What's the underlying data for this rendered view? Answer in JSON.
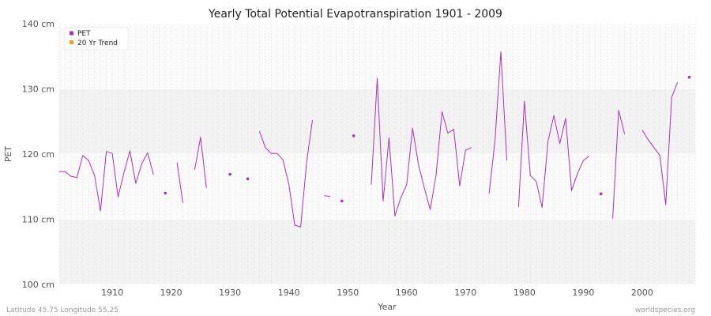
{
  "chart_data": {
    "type": "line",
    "title": "Yearly Total Potential Evapotranspiration 1901 - 2009",
    "xlabel": "Year",
    "ylabel": "PET",
    "xlim": [
      1901,
      2009
    ],
    "ylim": [
      100,
      140
    ],
    "x_ticks": [
      1910,
      1920,
      1930,
      1940,
      1950,
      1960,
      1970,
      1980,
      1990,
      2000
    ],
    "y_ticks": [
      {
        "value": 100,
        "label": "100 cm"
      },
      {
        "value": 110,
        "label": "110 cm"
      },
      {
        "value": 120,
        "label": "120 cm"
      },
      {
        "value": 130,
        "label": "130 cm"
      },
      {
        "value": 140,
        "label": "140 cm"
      }
    ],
    "grid": true,
    "legend": {
      "position": "top-left",
      "entries": [
        {
          "label": "PET",
          "color": "#aa33bb"
        },
        {
          "label": "20 Yr Trend",
          "color": "#f0a020"
        }
      ]
    },
    "series": [
      {
        "name": "PET",
        "color": "#aa33bb",
        "x": [
          1901,
          1902,
          1903,
          1904,
          1905,
          1906,
          1907,
          1908,
          1909,
          1910,
          1911,
          1912,
          1913,
          1914,
          1915,
          1916,
          1917,
          1918,
          1919,
          1920,
          1921,
          1922,
          1923,
          1924,
          1925,
          1926,
          1927,
          1928,
          1929,
          1930,
          1931,
          1932,
          1933,
          1934,
          1935,
          1936,
          1937,
          1938,
          1939,
          1940,
          1941,
          1942,
          1943,
          1944,
          1945,
          1946,
          1947,
          1948,
          1949,
          1950,
          1951,
          1952,
          1953,
          1954,
          1955,
          1956,
          1957,
          1958,
          1959,
          1960,
          1961,
          1962,
          1963,
          1964,
          1965,
          1966,
          1967,
          1968,
          1969,
          1970,
          1971,
          1972,
          1973,
          1974,
          1975,
          1976,
          1977,
          1978,
          1979,
          1980,
          1981,
          1982,
          1983,
          1984,
          1985,
          1986,
          1987,
          1988,
          1989,
          1990,
          1991,
          1992,
          1993,
          1994,
          1995,
          1996,
          1997,
          1998,
          1999,
          2000,
          2001,
          2002,
          2003,
          2004,
          2005,
          2006,
          2007,
          2008,
          2009
        ],
        "values": [
          117.3,
          117.3,
          116.6,
          116.4,
          119.8,
          119.0,
          116.7,
          111.3,
          120.4,
          120.1,
          113.4,
          117.2,
          120.5,
          115.5,
          118.5,
          120.2,
          116.8,
          null,
          114.0,
          null,
          118.7,
          112.5,
          null,
          117.6,
          122.6,
          114.8,
          null,
          null,
          null,
          116.9,
          null,
          null,
          116.2,
          null,
          123.5,
          121.0,
          120.1,
          120.1,
          119.1,
          115.3,
          109.1,
          108.8,
          118.7,
          125.2,
          null,
          113.6,
          113.5,
          null,
          112.8,
          null,
          122.8,
          null,
          null,
          115.3,
          131.6,
          112.8,
          122.5,
          110.5,
          113.3,
          115.3,
          124.0,
          118.4,
          114.8,
          111.5,
          116.8,
          126.5,
          123.2,
          123.8,
          115.1,
          120.6,
          121.0,
          null,
          null,
          113.9,
          122.1,
          135.7,
          119.0,
          null,
          111.9,
          128.1,
          116.7,
          115.8,
          111.8,
          122.0,
          125.9,
          121.6,
          125.5,
          114.4,
          117.0,
          119.0,
          119.7,
          null,
          113.9,
          null,
          110.1,
          126.7,
          123.1,
          null,
          null,
          123.7,
          122.2,
          121.0,
          119.8,
          112.2,
          128.7,
          131.0,
          null,
          131.8,
          null
        ]
      }
    ],
    "footer_left": "Latitude 45.75 Longitude 55.25",
    "footer_right": "worldspecies.org"
  }
}
